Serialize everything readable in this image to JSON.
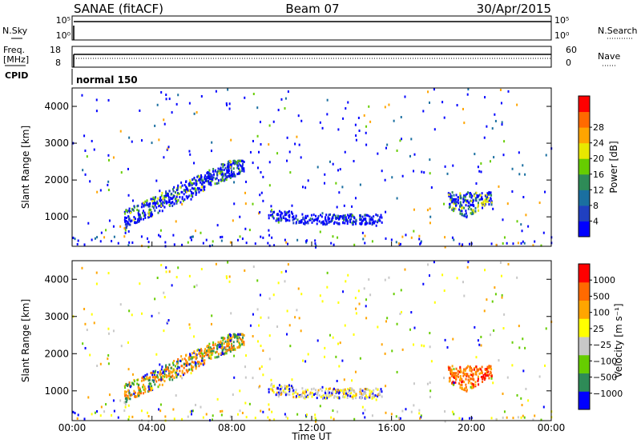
{
  "header": {
    "station": "SANAE (fitACF)",
    "beam": "Beam 07",
    "date": "30/Apr/2015"
  },
  "nsky_panel": {
    "label": "N.Sky",
    "ticks_left": [
      "10^5",
      "10^0"
    ],
    "ticks_right": [
      "10^5",
      "10^0"
    ],
    "right_label": "N.Search",
    "level": 0.9
  },
  "freq_panel": {
    "label_line1": "Freq.",
    "label_line2": "[MHz]",
    "ticks_left": [
      "18",
      "8"
    ],
    "ticks_right": [
      "60",
      "0"
    ],
    "right_label": "Nave",
    "cpid_label": "CPID",
    "cpid_text": "normal 150"
  },
  "time_axis": {
    "label": "Time UT",
    "ticks": [
      "00:00",
      "04:00",
      "08:00",
      "12:00",
      "16:00",
      "20:00",
      "00:00"
    ],
    "range_hours": [
      0,
      24
    ]
  },
  "chart_data": [
    {
      "type": "heatmap",
      "name": "power",
      "ylabel": "Slant Range [km]",
      "yticks": [
        "1000",
        "2000",
        "3000",
        "4000"
      ],
      "ylim": [
        200,
        4500
      ],
      "colorbar": {
        "label": "Power [dB]",
        "ticks": [
          "4",
          "8",
          "12",
          "16",
          "20",
          "24",
          "28"
        ],
        "colors": [
          "#0000ff",
          "#2040c0",
          "#1a6fa0",
          "#2e8b57",
          "#66cd00",
          "#e8e800",
          "#ffa500",
          "#ff6a00",
          "#ff0000"
        ]
      },
      "regions": [
        {
          "t0": 2.6,
          "t1": 8.6,
          "r0": 900,
          "r1": 2550,
          "note": "band",
          "dominant": "blue"
        },
        {
          "t0": 9.8,
          "t1": 15.5,
          "r0": 800,
          "r1": 1100,
          "dominant": "blue"
        },
        {
          "t0": 18.8,
          "t1": 21.0,
          "r0": 1000,
          "r1": 1700,
          "dominant": "blue-yellow"
        }
      ]
    },
    {
      "type": "heatmap",
      "name": "velocity",
      "ylabel": "Slant Range [km]",
      "yticks": [
        "1000",
        "2000",
        "3000",
        "4000"
      ],
      "ylim": [
        200,
        4500
      ],
      "colorbar": {
        "label": "Velocity [m s⁻¹]",
        "ticks": [
          "1000",
          "500",
          "100",
          "25",
          "−25",
          "−100",
          "−500",
          "−1000"
        ],
        "colors": [
          "#0000ff",
          "#2e8b57",
          "#66cd00",
          "#c8c8c8",
          "#ffff00",
          "#ffa500",
          "#ff6a00",
          "#ff0000"
        ]
      },
      "regions": [
        {
          "t0": 2.6,
          "t1": 8.6,
          "r0": 900,
          "r1": 2550,
          "dominant": "orange-green"
        },
        {
          "t0": 9.8,
          "t1": 15.5,
          "r0": 800,
          "r1": 1100,
          "dominant": "grey-blue"
        },
        {
          "t0": 18.8,
          "t1": 21.0,
          "r0": 1000,
          "r1": 1700,
          "dominant": "orange-red"
        }
      ]
    }
  ]
}
